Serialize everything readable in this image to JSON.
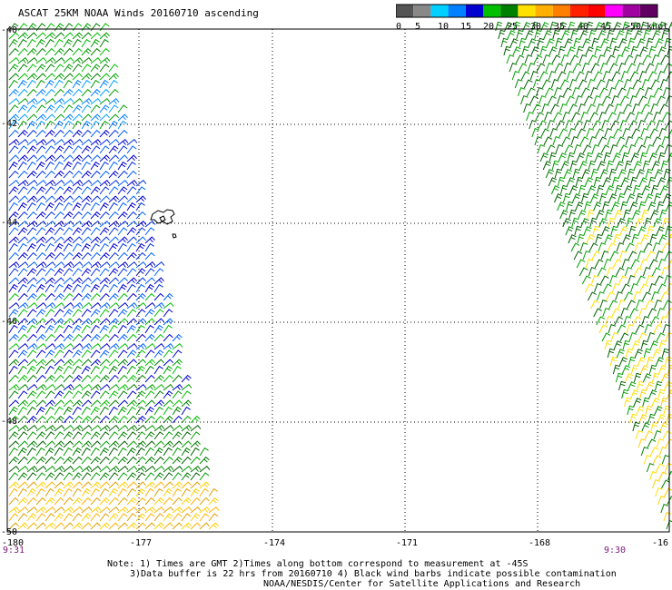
{
  "title": "ASCAT 25KM NOAA Winds 20160710 ascending",
  "legend": {
    "labels": [
      "0",
      "5",
      "10",
      "15",
      "20",
      "25",
      "30",
      "35",
      "40",
      "45",
      ">50 knots"
    ],
    "colors": [
      "#555555",
      "#888888",
      "#00d0ff",
      "#0080ff",
      "#0000d0",
      "#00c000",
      "#008000",
      "#ffe000",
      "#ffb000",
      "#ff8000",
      "#ff2000",
      "#ff0000",
      "#ff00ff",
      "#a000a0",
      "#600060"
    ]
  },
  "lat_labels": [
    "-40",
    "-42",
    "-44",
    "-46",
    "-48",
    "-50"
  ],
  "lon_labels": [
    "-180",
    "-177",
    "-174",
    "-171",
    "-168",
    "-16"
  ],
  "times": {
    "left": "9:31",
    "right": "9:30"
  },
  "notes": [
    "Note: 1) Times are GMT 2)Times along bottom correspond to measurement at -45S",
    "3)Data buffer is 22 hrs from 20160710 4) Black wind barbs indicate possible contamination",
    "NOAA/NESDIS/Center for Satellite Applications and Research"
  ],
  "icons": {
    "island": "island-outline-icon"
  }
}
